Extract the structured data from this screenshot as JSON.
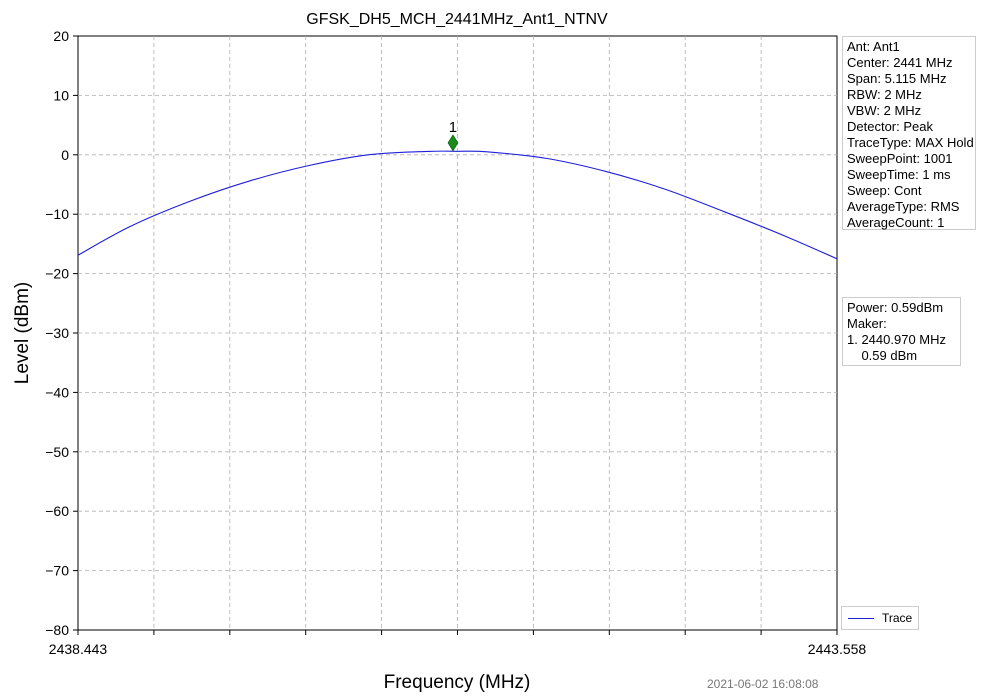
{
  "chart_data": {
    "type": "line",
    "title": "GFSK_DH5_MCH_2441MHz_Ant1_NTNV",
    "xlabel": "Frequency (MHz)",
    "ylabel": "Level (dBm)",
    "xlim": [
      2438.443,
      2443.558
    ],
    "ylim": [
      -80,
      20
    ],
    "x_tick_labels": [
      "2438.443",
      "2443.558"
    ],
    "y_ticks": [
      20,
      10,
      0,
      -10,
      -20,
      -30,
      -40,
      -50,
      -60,
      -70,
      -80
    ],
    "y_tick_labels": [
      "20",
      "10",
      "0",
      "−10",
      "−20",
      "−30",
      "−40",
      "−50",
      "−60",
      "−70",
      "−80"
    ],
    "grid": true,
    "legend_position": "lower-right",
    "series": [
      {
        "name": "Trace",
        "color": "#1f1fdc",
        "x": [
          2438.443,
          2438.8,
          2439.2,
          2439.6,
          2440.0,
          2440.4,
          2440.8,
          2441.0,
          2441.2,
          2441.6,
          2442.0,
          2442.4,
          2442.8,
          2443.2,
          2443.558
        ],
        "y": [
          -16.9,
          -12.0,
          -7.8,
          -4.4,
          -1.8,
          0.0,
          0.57,
          0.59,
          0.5,
          -0.6,
          -2.8,
          -5.8,
          -9.6,
          -13.6,
          -17.5
        ]
      }
    ],
    "markers": [
      {
        "label": "1",
        "x": 2440.97,
        "y": 2.0,
        "color": "#1a8a1a",
        "shape": "diamond"
      }
    ]
  },
  "params_box": {
    "lines": [
      "Ant: Ant1",
      "Center: 2441 MHz",
      "Span: 5.115 MHz",
      "RBW: 2 MHz",
      "VBW: 2 MHz",
      "Detector: Peak",
      "TraceType: MAX Hold",
      "SweepPoint: 1001",
      "SweepTime: 1 ms",
      "Sweep: Cont",
      "AverageType: RMS",
      "AverageCount: 1"
    ]
  },
  "power_box": {
    "lines": [
      "Power: 0.59dBm",
      "Maker:",
      "1. 2440.970 MHz",
      "    0.59 dBm"
    ]
  },
  "legend": {
    "label": "Trace"
  },
  "timestamp": "2021-06-02 16:08:08"
}
